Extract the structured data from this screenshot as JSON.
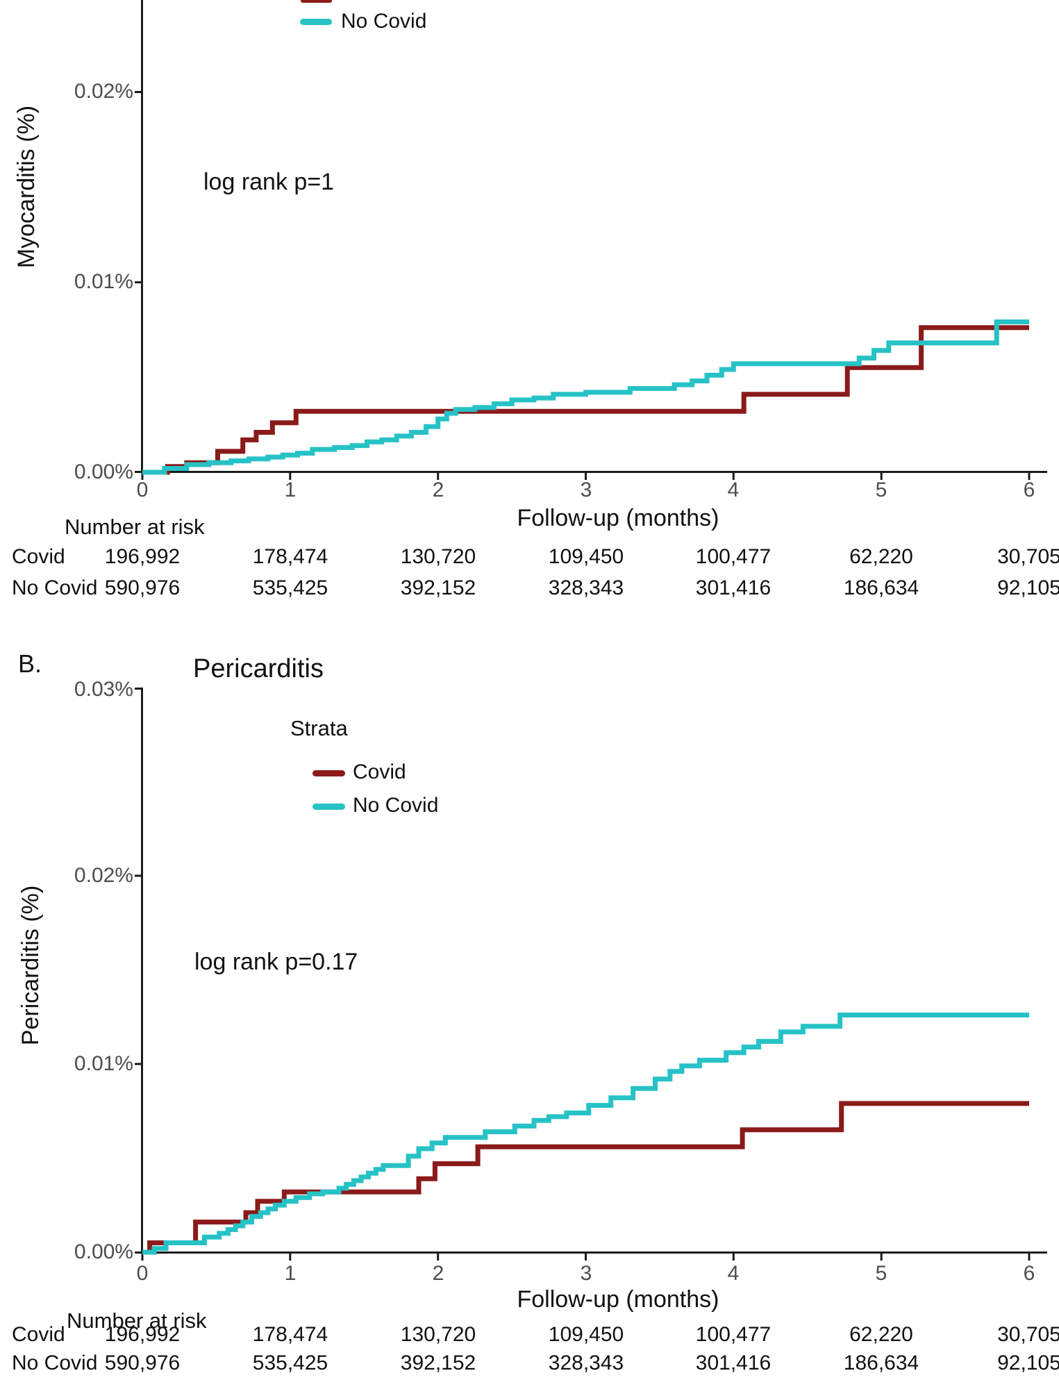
{
  "colors": {
    "covid": "#8B1A1A",
    "no_covid": "#26C2C6",
    "axis": "#1A1A1A",
    "tick_label": "#4D4D4D"
  },
  "panel_a": {
    "ylabel": "Myocarditis (%)",
    "xlabel": "Follow-up (months)",
    "annotation": "log rank p=1",
    "legend": {
      "no_covid_label": "No Covid"
    },
    "y_tick_labels": [
      "0.02%",
      "0.01%",
      "0.00%"
    ],
    "x_tick_labels": [
      "0",
      "1",
      "2",
      "3",
      "4",
      "5",
      "6"
    ],
    "number_at_risk": {
      "title": "Number at risk",
      "rows": [
        {
          "label": "Covid",
          "values": [
            "196,992",
            "178,474",
            "130,720",
            "109,450",
            "100,477",
            "62,220",
            "30,705"
          ]
        },
        {
          "label": "No Covid",
          "values": [
            "590,976",
            "535,425",
            "392,152",
            "328,343",
            "301,416",
            "186,634",
            "92,105"
          ]
        }
      ]
    }
  },
  "panel_b": {
    "label": "B.",
    "title": "Pericarditis",
    "ylabel": "Pericarditis (%)",
    "xlabel": "Follow-up (months)",
    "annotation": "log rank p=0.17",
    "legend": {
      "title": "Strata",
      "covid_label": "Covid",
      "no_covid_label": "No Covid"
    },
    "y_tick_labels": [
      "0.03%",
      "0.02%",
      "0.01%",
      "0.00%"
    ],
    "x_tick_labels": [
      "0",
      "1",
      "2",
      "3",
      "4",
      "5",
      "6"
    ],
    "number_at_risk": {
      "title": "Number at risk",
      "rows": [
        {
          "label": "Covid",
          "values": [
            "196,992",
            "178,474",
            "130,720",
            "109,450",
            "100,477",
            "62,220",
            "30,705"
          ]
        },
        {
          "label": "No Covid",
          "values": [
            "590,976",
            "535,425",
            "392,152",
            "328,343",
            "301,416",
            "186,634",
            "92,105"
          ]
        }
      ]
    }
  },
  "chart_data": [
    {
      "type": "line",
      "subtype": "kaplan-meier-cumulative-incidence-step",
      "panel": "A",
      "outcome": "Myocarditis",
      "xlabel": "Follow-up (months)",
      "ylabel": "Myocarditis (%)",
      "xlim": [
        0,
        6
      ],
      "x_ticks": [
        0,
        1,
        2,
        3,
        4,
        5,
        6
      ],
      "ylim_pct": [
        0,
        0.03
      ],
      "visible_y_ticks": [
        "0.00%",
        "0.01%",
        "0.02%"
      ],
      "top_cropped": true,
      "annotation": "log rank p=1",
      "legend_visible_items": [
        "No Covid"
      ],
      "series": [
        {
          "name": "Covid",
          "color": "#8B1A1A",
          "points_month_pct": [
            [
              0,
              0
            ],
            [
              0.17,
              0.0003
            ],
            [
              0.3,
              0.0005
            ],
            [
              0.51,
              0.0011
            ],
            [
              0.68,
              0.0017
            ],
            [
              0.77,
              0.0021
            ],
            [
              0.88,
              0.0026
            ],
            [
              1.04,
              0.0032
            ],
            [
              4.07,
              0.0041
            ],
            [
              4.77,
              0.0055
            ],
            [
              5.27,
              0.0076
            ],
            [
              6,
              0.0076
            ]
          ]
        },
        {
          "name": "No Covid",
          "color": "#26C2C6",
          "points_month_pct": [
            [
              0,
              0
            ],
            [
              0.15,
              0.0002
            ],
            [
              0.3,
              0.0004
            ],
            [
              0.45,
              0.0005
            ],
            [
              0.6,
              0.0006
            ],
            [
              0.72,
              0.0007
            ],
            [
              0.85,
              0.0008
            ],
            [
              0.95,
              0.0009
            ],
            [
              1.05,
              0.001
            ],
            [
              1.15,
              0.0012
            ],
            [
              1.3,
              0.0013
            ],
            [
              1.42,
              0.0014
            ],
            [
              1.52,
              0.0016
            ],
            [
              1.62,
              0.0017
            ],
            [
              1.72,
              0.0019
            ],
            [
              1.82,
              0.0021
            ],
            [
              1.92,
              0.0024
            ],
            [
              2.0,
              0.0028
            ],
            [
              2.06,
              0.0031
            ],
            [
              2.12,
              0.0033
            ],
            [
              2.25,
              0.0034
            ],
            [
              2.38,
              0.0036
            ],
            [
              2.5,
              0.0038
            ],
            [
              2.65,
              0.0039
            ],
            [
              2.78,
              0.0041
            ],
            [
              3.0,
              0.0042
            ],
            [
              3.3,
              0.0044
            ],
            [
              3.6,
              0.0046
            ],
            [
              3.72,
              0.0048
            ],
            [
              3.82,
              0.0051
            ],
            [
              3.92,
              0.0054
            ],
            [
              4.0,
              0.0057
            ],
            [
              4.85,
              0.006
            ],
            [
              4.95,
              0.0064
            ],
            [
              5.05,
              0.0068
            ],
            [
              5.78,
              0.0079
            ],
            [
              6,
              0.0079
            ]
          ]
        }
      ],
      "number_at_risk": {
        "Covid": [
          196992,
          178474,
          130720,
          109450,
          100477,
          62220,
          30705
        ],
        "No Covid": [
          590976,
          535425,
          392152,
          328343,
          301416,
          186634,
          92105
        ]
      }
    },
    {
      "type": "line",
      "subtype": "kaplan-meier-cumulative-incidence-step",
      "panel": "B",
      "outcome": "Pericarditis",
      "title": "Pericarditis",
      "xlabel": "Follow-up (months)",
      "ylabel": "Pericarditis (%)",
      "xlim": [
        0,
        6
      ],
      "x_ticks": [
        0,
        1,
        2,
        3,
        4,
        5,
        6
      ],
      "ylim_pct": [
        0,
        0.03
      ],
      "visible_y_ticks": [
        "0.00%",
        "0.01%",
        "0.02%",
        "0.03%"
      ],
      "annotation": "log rank p=0.17",
      "legend_title": "Strata",
      "legend_visible_items": [
        "Covid",
        "No Covid"
      ],
      "series": [
        {
          "name": "Covid",
          "color": "#8B1A1A",
          "points_month_pct": [
            [
              0,
              0
            ],
            [
              0.05,
              0.0005
            ],
            [
              0.36,
              0.0016
            ],
            [
              0.7,
              0.0021
            ],
            [
              0.78,
              0.0027
            ],
            [
              0.96,
              0.0032
            ],
            [
              1.87,
              0.0039
            ],
            [
              1.98,
              0.0047
            ],
            [
              2.27,
              0.0056
            ],
            [
              4.06,
              0.0065
            ],
            [
              4.73,
              0.0079
            ],
            [
              6,
              0.0079
            ]
          ]
        },
        {
          "name": "No Covid",
          "color": "#26C2C6",
          "points_month_pct": [
            [
              0,
              0
            ],
            [
              0.08,
              0.0002
            ],
            [
              0.16,
              0.0005
            ],
            [
              0.42,
              0.0008
            ],
            [
              0.52,
              0.001
            ],
            [
              0.58,
              0.0012
            ],
            [
              0.63,
              0.0014
            ],
            [
              0.68,
              0.0016
            ],
            [
              0.74,
              0.0019
            ],
            [
              0.8,
              0.0021
            ],
            [
              0.85,
              0.0023
            ],
            [
              0.9,
              0.0025
            ],
            [
              0.96,
              0.0027
            ],
            [
              1.04,
              0.0029
            ],
            [
              1.13,
              0.0031
            ],
            [
              1.22,
              0.0032
            ],
            [
              1.33,
              0.0034
            ],
            [
              1.38,
              0.0036
            ],
            [
              1.43,
              0.0038
            ],
            [
              1.48,
              0.004
            ],
            [
              1.53,
              0.0042
            ],
            [
              1.58,
              0.0044
            ],
            [
              1.63,
              0.0046
            ],
            [
              1.8,
              0.0051
            ],
            [
              1.87,
              0.0055
            ],
            [
              1.96,
              0.0058
            ],
            [
              2.05,
              0.0061
            ],
            [
              2.32,
              0.0064
            ],
            [
              2.52,
              0.0067
            ],
            [
              2.65,
              0.007
            ],
            [
              2.75,
              0.0072
            ],
            [
              2.87,
              0.0074
            ],
            [
              3.02,
              0.0078
            ],
            [
              3.17,
              0.0082
            ],
            [
              3.32,
              0.0087
            ],
            [
              3.47,
              0.0092
            ],
            [
              3.57,
              0.0096
            ],
            [
              3.65,
              0.0099
            ],
            [
              3.77,
              0.0102
            ],
            [
              3.95,
              0.0106
            ],
            [
              4.07,
              0.0109
            ],
            [
              4.17,
              0.0112
            ],
            [
              4.32,
              0.0117
            ],
            [
              4.47,
              0.012
            ],
            [
              4.72,
              0.0126
            ],
            [
              6,
              0.0126
            ]
          ]
        }
      ],
      "number_at_risk": {
        "Covid": [
          196992,
          178474,
          130720,
          109450,
          100477,
          62220,
          30705
        ],
        "No Covid": [
          590976,
          535425,
          392152,
          328343,
          301416,
          186634,
          92105
        ]
      }
    }
  ]
}
